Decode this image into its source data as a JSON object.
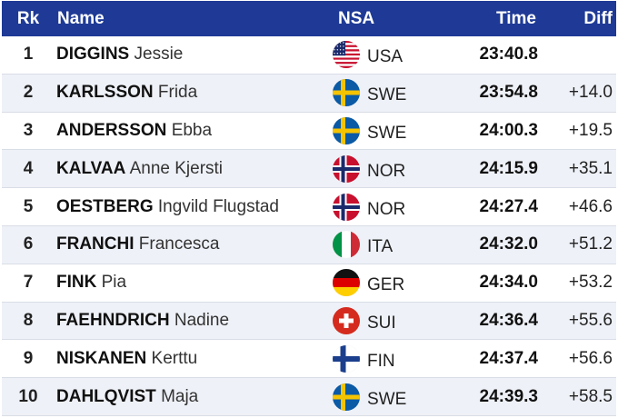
{
  "header": {
    "rank": "Rk",
    "name": "Name",
    "nsa": "NSA",
    "time": "Time",
    "diff": "Diff"
  },
  "rows": [
    {
      "rank": "1",
      "last": "DIGGINS",
      "first": "Jessie",
      "nsa": "USA",
      "flag_icon": "usa-flag-icon",
      "time": "23:40.8",
      "diff": ""
    },
    {
      "rank": "2",
      "last": "KARLSSON",
      "first": "Frida",
      "nsa": "SWE",
      "flag_icon": "sweden-flag-icon",
      "time": "23:54.8",
      "diff": "+14.0"
    },
    {
      "rank": "3",
      "last": "ANDERSSON",
      "first": "Ebba",
      "nsa": "SWE",
      "flag_icon": "sweden-flag-icon",
      "time": "24:00.3",
      "diff": "+19.5"
    },
    {
      "rank": "4",
      "last": "KALVAA",
      "first": "Anne Kjersti",
      "nsa": "NOR",
      "flag_icon": "norway-flag-icon",
      "time": "24:15.9",
      "diff": "+35.1"
    },
    {
      "rank": "5",
      "last": "OESTBERG",
      "first": "Ingvild Flugstad",
      "nsa": "NOR",
      "flag_icon": "norway-flag-icon",
      "time": "24:27.4",
      "diff": "+46.6"
    },
    {
      "rank": "6",
      "last": "FRANCHI",
      "first": "Francesca",
      "nsa": "ITA",
      "flag_icon": "italy-flag-icon",
      "time": "24:32.0",
      "diff": "+51.2"
    },
    {
      "rank": "7",
      "last": "FINK",
      "first": "Pia",
      "nsa": "GER",
      "flag_icon": "germany-flag-icon",
      "time": "24:34.0",
      "diff": "+53.2"
    },
    {
      "rank": "8",
      "last": "FAEHNDRICH",
      "first": "Nadine",
      "nsa": "SUI",
      "flag_icon": "switzerland-flag-icon",
      "time": "24:36.4",
      "diff": "+55.6"
    },
    {
      "rank": "9",
      "last": "NISKANEN",
      "first": "Kerttu",
      "nsa": "FIN",
      "flag_icon": "finland-flag-icon",
      "time": "24:37.4",
      "diff": "+56.6"
    },
    {
      "rank": "10",
      "last": "DAHLQVIST",
      "first": "Maja",
      "nsa": "SWE",
      "flag_icon": "sweden-flag-icon",
      "time": "24:39.3",
      "diff": "+58.5"
    }
  ],
  "colors": {
    "header_bg": "#1e3a96",
    "row_alt_bg": "#eef1f7"
  }
}
